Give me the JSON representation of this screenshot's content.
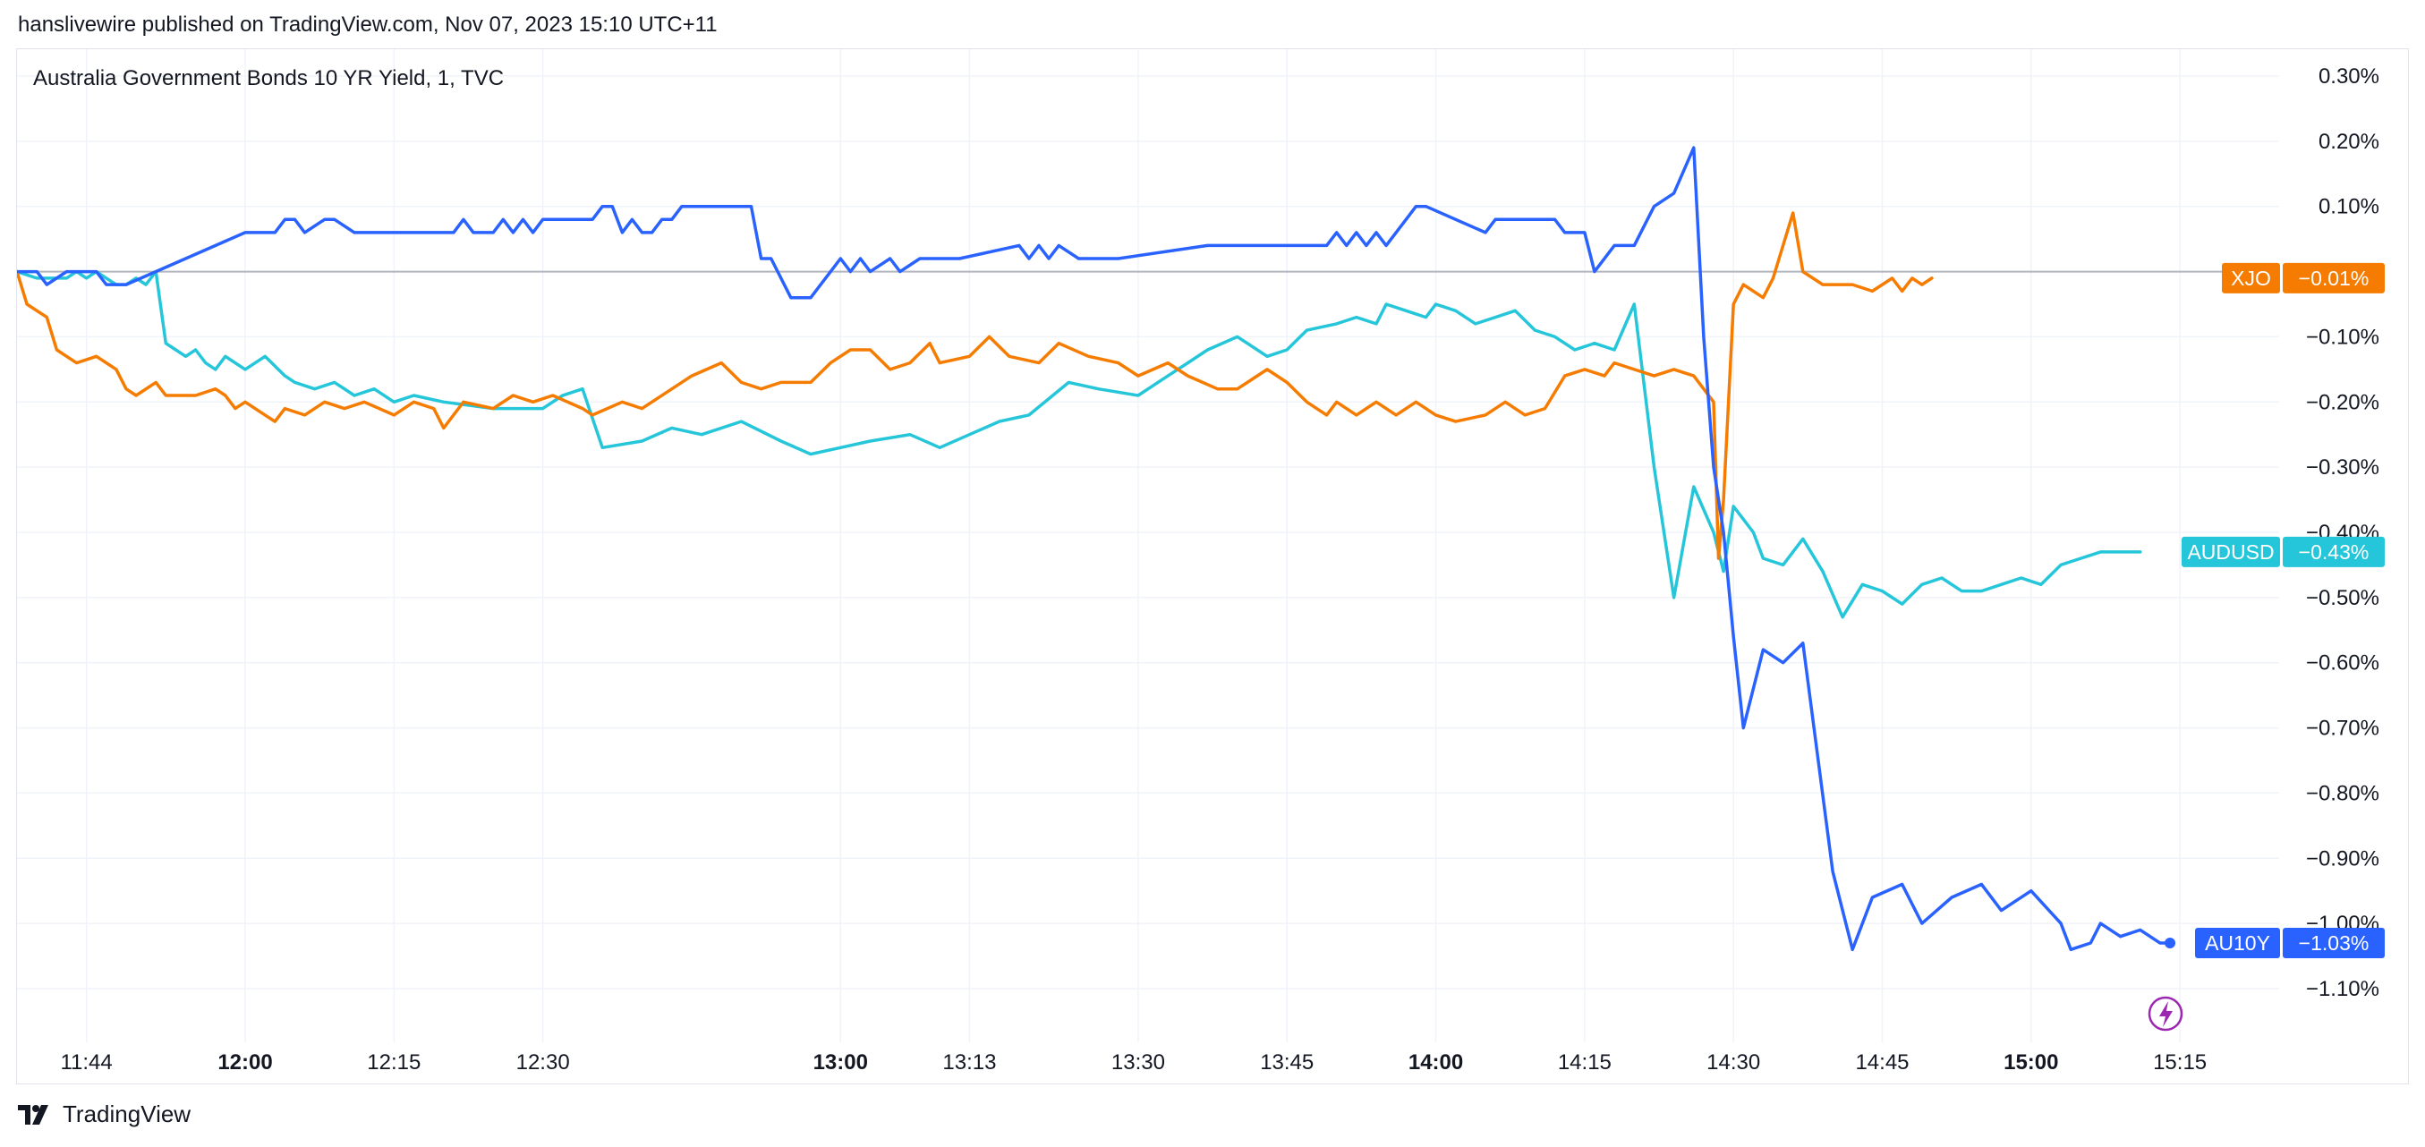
{
  "header": {
    "published_by": "hanslivewire published on TradingView.com, Nov 07, 2023 15:10 UTC+11"
  },
  "footer": {
    "brand": "TradingView"
  },
  "colors": {
    "AU10Y": "#2962ff",
    "XJO": "#f57c00",
    "AUDUSD": "#26c6da",
    "grid": "#f0f3fa",
    "zero_line": "#b2b5be",
    "badge": "#9c27b0"
  },
  "chart_data": {
    "type": "line",
    "title": "Australia Government Bonds 10 YR Yield, 1, TVC",
    "xlabel": "",
    "ylabel": "",
    "x_ticks": [
      {
        "label": "11:44",
        "t": 704,
        "bold": false
      },
      {
        "label": "12:00",
        "t": 720,
        "bold": true
      },
      {
        "label": "12:15",
        "t": 735,
        "bold": false
      },
      {
        "label": "12:30",
        "t": 750,
        "bold": false
      },
      {
        "label": "13:00",
        "t": 780,
        "bold": true
      },
      {
        "label": "13:13",
        "t": 793,
        "bold": false
      },
      {
        "label": "13:30",
        "t": 810,
        "bold": false
      },
      {
        "label": "13:45",
        "t": 825,
        "bold": false
      },
      {
        "label": "14:00",
        "t": 840,
        "bold": true
      },
      {
        "label": "14:15",
        "t": 855,
        "bold": false
      },
      {
        "label": "14:30",
        "t": 870,
        "bold": false
      },
      {
        "label": "14:45",
        "t": 885,
        "bold": false
      },
      {
        "label": "15:00",
        "t": 900,
        "bold": true
      },
      {
        "label": "15:15",
        "t": 915,
        "bold": false
      }
    ],
    "y_ticks": [
      "0.30%",
      "0.20%",
      "0.10%",
      "−0.10%",
      "−0.20%",
      "−0.30%",
      "−0.40%",
      "−0.50%",
      "−0.60%",
      "−0.70%",
      "−0.80%",
      "−0.90%",
      "−1.00%",
      "−1.10%"
    ],
    "y_tick_values": [
      0.3,
      0.2,
      0.1,
      -0.1,
      -0.2,
      -0.3,
      -0.4,
      -0.5,
      -0.6,
      -0.7,
      -0.8,
      -0.9,
      -1.0,
      -1.1
    ],
    "ylim": [
      -1.2,
      0.33
    ],
    "xlim_minutes": [
      697,
      925
    ],
    "series": [
      {
        "name": "AU10Y",
        "last_label": "−1.03%",
        "x": [
          697,
          699,
          700,
          702,
          703,
          705,
          706,
          707,
          708,
          720,
          721,
          723,
          724,
          725,
          726,
          728,
          729,
          731,
          741,
          742,
          743,
          745,
          746,
          747,
          748,
          749,
          750,
          752,
          755,
          756,
          757,
          758,
          759,
          760,
          761,
          762,
          763,
          764,
          765,
          766,
          771,
          772,
          773,
          775,
          777,
          779,
          780,
          781,
          782,
          783,
          785,
          786,
          788,
          791,
          792,
          798,
          799,
          800,
          801,
          802,
          804,
          808,
          817,
          818,
          819,
          821,
          822,
          829,
          830,
          831,
          832,
          833,
          834,
          835,
          837,
          838,
          839,
          845,
          846,
          852,
          853,
          855,
          856,
          858,
          860,
          862,
          864,
          866,
          867,
          868,
          869,
          870,
          871,
          873,
          875,
          877,
          880,
          882,
          884,
          887,
          889,
          892,
          895,
          897,
          900,
          903,
          904,
          906,
          907,
          909,
          911,
          913,
          914
        ],
        "values": [
          0.0,
          0.0,
          -0.02,
          0.0,
          0.0,
          0.0,
          -0.02,
          -0.02,
          -0.02,
          0.06,
          0.06,
          0.06,
          0.08,
          0.08,
          0.06,
          0.08,
          0.08,
          0.06,
          0.06,
          0.08,
          0.06,
          0.06,
          0.08,
          0.06,
          0.08,
          0.06,
          0.08,
          0.08,
          0.08,
          0.1,
          0.1,
          0.06,
          0.08,
          0.06,
          0.06,
          0.08,
          0.08,
          0.1,
          0.1,
          0.1,
          0.1,
          0.02,
          0.02,
          -0.04,
          -0.04,
          0.0,
          0.02,
          0.0,
          0.02,
          0.0,
          0.02,
          0.0,
          0.02,
          0.02,
          0.02,
          0.04,
          0.02,
          0.04,
          0.02,
          0.04,
          0.02,
          0.02,
          0.04,
          0.04,
          0.04,
          0.04,
          0.04,
          0.04,
          0.06,
          0.04,
          0.06,
          0.04,
          0.06,
          0.04,
          0.08,
          0.1,
          0.1,
          0.06,
          0.08,
          0.08,
          0.06,
          0.06,
          0.0,
          0.04,
          0.04,
          0.1,
          0.12,
          0.19,
          -0.1,
          -0.3,
          -0.4,
          -0.56,
          -0.7,
          -0.58,
          -0.6,
          -0.57,
          -0.92,
          -1.04,
          -0.96,
          -0.94,
          -1.0,
          -0.96,
          -0.94,
          -0.98,
          -0.95,
          -1.0,
          -1.04,
          -1.03,
          -1.0,
          -1.02,
          -1.01,
          -1.03,
          -1.03
        ]
      },
      {
        "name": "XJO",
        "last_label": "−0.01%",
        "x": [
          697,
          698,
          700,
          701,
          702,
          703,
          705,
          707,
          708,
          709,
          711,
          712,
          715,
          717,
          718,
          719,
          720,
          722,
          723,
          724,
          726,
          728,
          730,
          732,
          735,
          737,
          739,
          740,
          742,
          745,
          747,
          749,
          751,
          754,
          755,
          758,
          760,
          763,
          765,
          768,
          770,
          772,
          774,
          777,
          779,
          781,
          783,
          785,
          787,
          789,
          790,
          793,
          795,
          797,
          800,
          802,
          805,
          808,
          810,
          813,
          815,
          818,
          820,
          823,
          825,
          827,
          829,
          830,
          832,
          834,
          836,
          838,
          840,
          842,
          845,
          847,
          849,
          851,
          853,
          855,
          857,
          858,
          860,
          862,
          864,
          866,
          868,
          868.5,
          869,
          870,
          871,
          873,
          874,
          876,
          877,
          879,
          880,
          882,
          884,
          886,
          887,
          888,
          889,
          890
        ],
        "values": [
          0.0,
          -0.05,
          -0.07,
          -0.12,
          -0.13,
          -0.14,
          -0.13,
          -0.15,
          -0.18,
          -0.19,
          -0.17,
          -0.19,
          -0.19,
          -0.18,
          -0.19,
          -0.21,
          -0.2,
          -0.22,
          -0.23,
          -0.21,
          -0.22,
          -0.2,
          -0.21,
          -0.2,
          -0.22,
          -0.2,
          -0.21,
          -0.24,
          -0.2,
          -0.21,
          -0.19,
          -0.2,
          -0.19,
          -0.21,
          -0.22,
          -0.2,
          -0.21,
          -0.18,
          -0.16,
          -0.14,
          -0.17,
          -0.18,
          -0.17,
          -0.17,
          -0.14,
          -0.12,
          -0.12,
          -0.15,
          -0.14,
          -0.11,
          -0.14,
          -0.13,
          -0.1,
          -0.13,
          -0.14,
          -0.11,
          -0.13,
          -0.14,
          -0.16,
          -0.14,
          -0.16,
          -0.18,
          -0.18,
          -0.15,
          -0.17,
          -0.2,
          -0.22,
          -0.2,
          -0.22,
          -0.2,
          -0.22,
          -0.2,
          -0.22,
          -0.23,
          -0.22,
          -0.2,
          -0.22,
          -0.21,
          -0.16,
          -0.15,
          -0.16,
          -0.14,
          -0.15,
          -0.16,
          -0.15,
          -0.16,
          -0.2,
          -0.44,
          -0.35,
          -0.05,
          -0.02,
          -0.04,
          -0.01,
          0.09,
          0.0,
          -0.02,
          -0.02,
          -0.02,
          -0.03,
          -0.01,
          -0.03,
          -0.01,
          -0.02,
          -0.01
        ]
      },
      {
        "name": "AUDUSD",
        "last_label": "−0.43%",
        "x": [
          697,
          699,
          702,
          703,
          704,
          705,
          706,
          707,
          708,
          709,
          710,
          711,
          712,
          713,
          714,
          715,
          716,
          717,
          718,
          720,
          722,
          724,
          725,
          727,
          729,
          731,
          733,
          735,
          737,
          740,
          745,
          750,
          752,
          754,
          756,
          760,
          763,
          766,
          770,
          774,
          777,
          780,
          783,
          787,
          790,
          793,
          796,
          799,
          803,
          806,
          810,
          813,
          815,
          817,
          820,
          823,
          825,
          827,
          830,
          832,
          834,
          835,
          837,
          839,
          840,
          842,
          844,
          846,
          848,
          850,
          852,
          853,
          854,
          856,
          858,
          860,
          862,
          864,
          866,
          868,
          869,
          870,
          871,
          872,
          873,
          875,
          877,
          879,
          881,
          883,
          885,
          887,
          889,
          891,
          893,
          895,
          897,
          899,
          901,
          903,
          905,
          907,
          909,
          911
        ],
        "values": [
          0.0,
          -0.01,
          -0.01,
          0.0,
          -0.01,
          0.0,
          -0.01,
          -0.02,
          -0.02,
          -0.01,
          -0.02,
          0.0,
          -0.11,
          -0.12,
          -0.13,
          -0.12,
          -0.14,
          -0.15,
          -0.13,
          -0.15,
          -0.13,
          -0.16,
          -0.17,
          -0.18,
          -0.17,
          -0.19,
          -0.18,
          -0.2,
          -0.19,
          -0.2,
          -0.21,
          -0.21,
          -0.19,
          -0.18,
          -0.27,
          -0.26,
          -0.24,
          -0.25,
          -0.23,
          -0.26,
          -0.28,
          -0.27,
          -0.26,
          -0.25,
          -0.27,
          -0.25,
          -0.23,
          -0.22,
          -0.17,
          -0.18,
          -0.19,
          -0.16,
          -0.14,
          -0.12,
          -0.1,
          -0.13,
          -0.12,
          -0.09,
          -0.08,
          -0.07,
          -0.08,
          -0.05,
          -0.06,
          -0.07,
          -0.05,
          -0.06,
          -0.08,
          -0.07,
          -0.06,
          -0.09,
          -0.1,
          -0.11,
          -0.12,
          -0.11,
          -0.12,
          -0.05,
          -0.3,
          -0.5,
          -0.33,
          -0.4,
          -0.46,
          -0.36,
          -0.38,
          -0.4,
          -0.44,
          -0.45,
          -0.41,
          -0.46,
          -0.53,
          -0.48,
          -0.49,
          -0.51,
          -0.48,
          -0.47,
          -0.49,
          -0.49,
          -0.48,
          -0.47,
          -0.48,
          -0.45,
          -0.44,
          -0.43,
          -0.43,
          -0.43
        ]
      }
    ],
    "grid": true,
    "legend": "right-axis-tags"
  }
}
